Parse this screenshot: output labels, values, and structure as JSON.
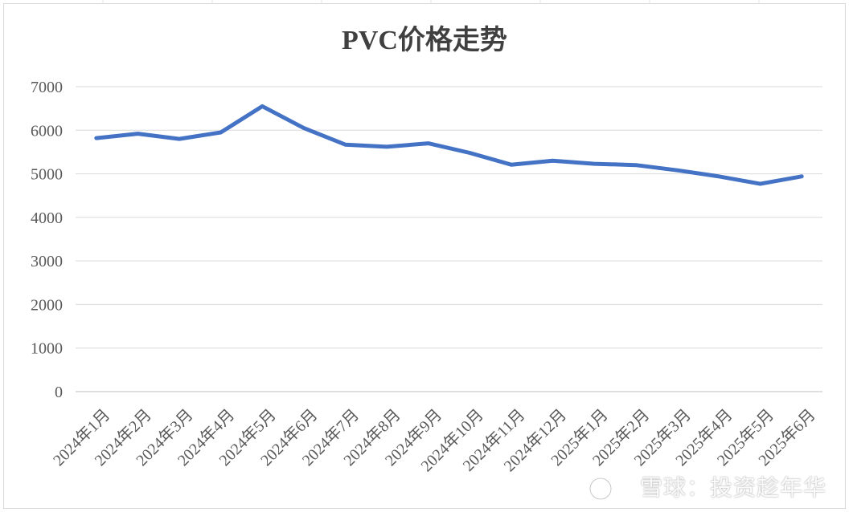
{
  "chart_data": {
    "type": "line",
    "title": "PVC价格走势",
    "categories": [
      "2024年1月",
      "2024年2月",
      "2024年3月",
      "2024年4月",
      "2024年5月",
      "2024年6月",
      "2024年7月",
      "2024年8月",
      "2024年9月",
      "2024年10月",
      "2024年11月",
      "2024年12月",
      "2025年1月",
      "2025年2月",
      "2025年3月",
      "2025年4月",
      "2025年5月",
      "2025年6月"
    ],
    "series": [
      {
        "values": [
          5820,
          5920,
          5800,
          5950,
          6550,
          6050,
          5670,
          5620,
          5700,
          5480,
          5210,
          5300,
          5230,
          5200,
          5080,
          4940,
          4770,
          4940
        ]
      }
    ],
    "ylim": [
      0,
      7000
    ],
    "yticks": [
      0,
      1000,
      2000,
      3000,
      4000,
      5000,
      6000,
      7000
    ],
    "grid": true,
    "legend": "none",
    "line_color": "#4472C4"
  },
  "watermark": "雪球：投资趁年华"
}
